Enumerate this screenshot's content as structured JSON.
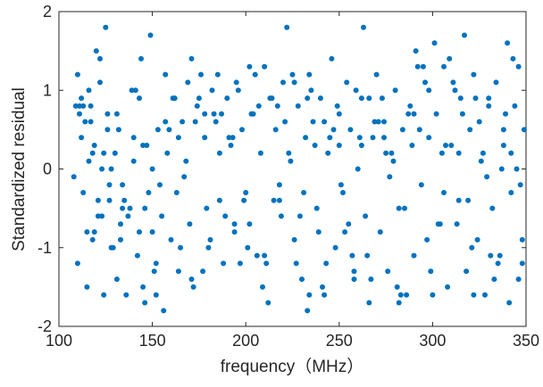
{
  "chart_data": {
    "type": "scatter",
    "title": "",
    "xlabel": "frequency（MHz）",
    "ylabel": "Standardized residual",
    "xlim": [
      100,
      350
    ],
    "ylim": [
      -2,
      2
    ],
    "x_ticks": [
      100,
      150,
      200,
      250,
      300,
      350
    ],
    "y_ticks": [
      -2,
      -1,
      0,
      1,
      2
    ],
    "x_tick_labels": [
      "100",
      "150",
      "200",
      "250",
      "300",
      "350"
    ],
    "y_tick_labels": [
      "-2",
      "-1",
      "0",
      "1",
      "2"
    ],
    "grid": false,
    "legend": "none",
    "marker_color": "#0072BD",
    "series": [
      {
        "x": [
          108,
          110,
          110,
          111,
          112,
          113,
          114,
          115,
          116,
          117,
          118,
          119,
          120,
          121,
          122,
          123,
          124,
          125,
          126,
          127,
          128,
          130,
          131,
          132,
          133,
          134,
          136,
          138,
          140,
          142,
          143,
          144,
          145,
          146,
          148,
          149,
          150,
          152,
          153,
          155,
          156,
          158,
          160,
          162,
          164,
          166,
          168,
          170,
          171,
          172,
          174,
          176,
          178,
          180,
          182,
          184,
          186,
          188,
          190,
          192,
          194,
          196,
          198,
          200,
          202,
          204,
          206,
          208,
          209,
          210,
          212,
          214,
          216,
          218,
          220,
          222,
          224,
          226,
          228,
          230,
          232,
          233,
          234,
          236,
          238,
          240,
          242,
          244,
          246,
          248,
          250,
          252,
          254,
          256,
          258,
          260,
          262,
          263,
          264,
          266,
          268,
          270,
          272,
          274,
          276,
          278,
          280,
          282,
          284,
          286,
          288,
          290,
          292,
          294,
          296,
          298,
          300,
          301,
          302,
          304,
          306,
          308,
          310,
          312,
          314,
          316,
          317,
          318,
          320,
          322,
          324,
          326,
          328,
          330,
          332,
          334,
          336,
          338,
          340,
          341,
          342,
          344,
          346,
          348,
          349,
          109,
          112,
          115,
          118,
          122,
          127,
          131,
          137,
          141,
          147,
          151,
          157,
          163,
          169,
          175,
          181,
          187,
          193,
          199,
          205,
          211,
          217,
          223,
          229,
          235,
          241,
          247,
          253,
          259,
          265,
          271,
          277,
          283,
          289,
          295,
          303,
          309,
          315,
          321,
          327,
          333,
          339,
          345,
          113,
          119,
          124,
          129,
          135,
          139,
          145,
          154,
          159,
          165,
          173,
          179,
          185,
          191,
          197,
          203,
          213,
          219,
          225,
          231,
          237,
          243,
          249,
          255,
          261,
          267,
          273,
          279,
          285,
          291,
          297,
          305,
          311,
          319,
          325,
          331,
          337,
          343,
          347,
          117,
          121,
          126,
          133,
          140,
          146,
          152,
          161,
          167,
          177,
          183,
          189,
          195,
          201,
          207,
          215,
          221,
          227,
          233,
          239,
          245,
          251,
          257,
          262,
          269,
          275,
          281,
          287,
          293,
          299,
          307,
          313,
          323,
          329,
          335,
          342,
          348,
          111,
          116,
          123,
          128,
          134,
          143,
          150,
          157,
          164,
          171,
          178,
          186,
          194,
          202,
          210,
          218,
          226,
          234,
          242,
          250,
          258,
          266,
          274,
          282,
          290,
          298,
          306,
          314,
          322,
          330,
          338,
          346
        ],
        "y": [
          -0.1,
          1.2,
          -1.2,
          0.7,
          0.9,
          -0.3,
          0.6,
          -1.5,
          0.1,
          0.8,
          -0.9,
          0.3,
          1.5,
          -0.6,
          1.4,
          0.0,
          -1.6,
          1.8,
          0.5,
          -0.4,
          -1.0,
          0.2,
          -1.4,
          0.5,
          -0.7,
          -0.2,
          -1.6,
          -0.5,
          0.1,
          -1.1,
          -0.8,
          1.4,
          0.3,
          -1.7,
          -0.3,
          1.7,
          0.0,
          -1.2,
          0.5,
          -0.6,
          -1.8,
          0.2,
          -0.9,
          0.9,
          -1.3,
          0.6,
          0.1,
          -0.7,
          1.4,
          -1.5,
          0.8,
          1.2,
          0.4,
          -1.0,
          1.0,
          0.6,
          -0.4,
          -1.2,
          0.9,
          0.3,
          -0.8,
          1.0,
          0.5,
          -0.3,
          -0.7,
          0.7,
          -1.1,
          0.2,
          -1.5,
          1.3,
          -1.7,
          0.9,
          0.5,
          -0.2,
          1.1,
          1.8,
          0.1,
          -0.9,
          0.8,
          -1.4,
          0.4,
          -1.8,
          1.2,
          0.6,
          -0.5,
          0.9,
          -1.6,
          0.2,
          1.4,
          -1.0,
          0.7,
          -0.3,
          1.1,
          0.5,
          -1.4,
          0.0,
          0.9,
          1.8,
          -0.6,
          -1.7,
          0.4,
          1.2,
          -0.8,
          0.6,
          -1.3,
          0.2,
          1.0,
          -0.5,
          0.5,
          -1.6,
          0.8,
          -1.1,
          1.3,
          -0.2,
          1.1,
          0.4,
          -1.6,
          1.6,
          0.7,
          -0.7,
          1.3,
          -1.5,
          0.3,
          1.0,
          -0.4,
          0.7,
          1.7,
          -1.3,
          0.5,
          1.2,
          -0.9,
          0.1,
          -1.6,
          0.9,
          -0.5,
          1.1,
          -1.1,
          0.3,
          1.6,
          -1.7,
          -0.3,
          0.8,
          1.3,
          -1.2,
          0.5,
          0.8,
          0.4,
          -0.8,
          0.2,
          1.1,
          -0.2,
          0.7,
          -0.6,
          1.0,
          0.3,
          -1.3,
          0.6,
          -0.3,
          1.1,
          0.9,
          -0.9,
          0.7,
          0.4,
          -0.4,
          1.2,
          -1.2,
          0.8,
          0.2,
          -0.6,
          1.0,
          -1.5,
          0.5,
          -0.8,
          1.0,
          -1.1,
          0.6,
          -0.1,
          -1.6,
          0.3,
          1.3,
          -0.7,
          1.4,
          0.9,
          -1.0,
          0.2,
          -1.4,
          0.7,
          0.0,
          0.8,
          -0.8,
          0.2,
          -1.0,
          -0.4,
          1.0,
          -1.5,
          -0.2,
          0.5,
          -1.0,
          0.6,
          -0.5,
          1.2,
          0.4,
          -1.2,
          0.7,
          0.9,
          -0.6,
          1.2,
          -0.3,
          0.3,
          -1.2,
          0.8,
          -0.7,
          0.4,
          -1.4,
          0.9,
          0.1,
          -0.5,
          1.5,
          -0.9,
          0.2,
          1.1,
          -0.4,
          0.6,
          -1.1,
          0.0,
          1.4,
          -0.2,
          0.6,
          -0.4,
          0.7,
          -0.9,
          0.4,
          -0.5,
          -1.6,
          0.9,
          -0.1,
          -1.3,
          0.7,
          -0.6,
          1.1,
          -1.0,
          0.8,
          -0.4,
          0.6,
          -1.2,
          0.9,
          -0.8,
          0.4,
          -0.2,
          -1.1,
          0.3,
          0.6,
          0.2,
          -1.5,
          0.7,
          0.5,
          -1.3,
          0.3,
          -0.7,
          0.9,
          -0.1,
          -1.2,
          0.2,
          -0.9,
          0.8,
          1.0,
          -0.6,
          0.0,
          -0.5,
          0.9,
          -0.8,
          1.2,
          0.4,
          -1.4,
          0.7,
          0.2,
          -0.7,
          1.3,
          -1.1,
          -0.4,
          1.1,
          -1.6,
          0.6,
          0.3,
          -1.3,
          0.9,
          0.4,
          -1.7,
          0.7,
          1.0,
          -0.3,
          0.2,
          -1.6,
          0.8,
          0.5,
          -1.4
        ]
      }
    ]
  }
}
